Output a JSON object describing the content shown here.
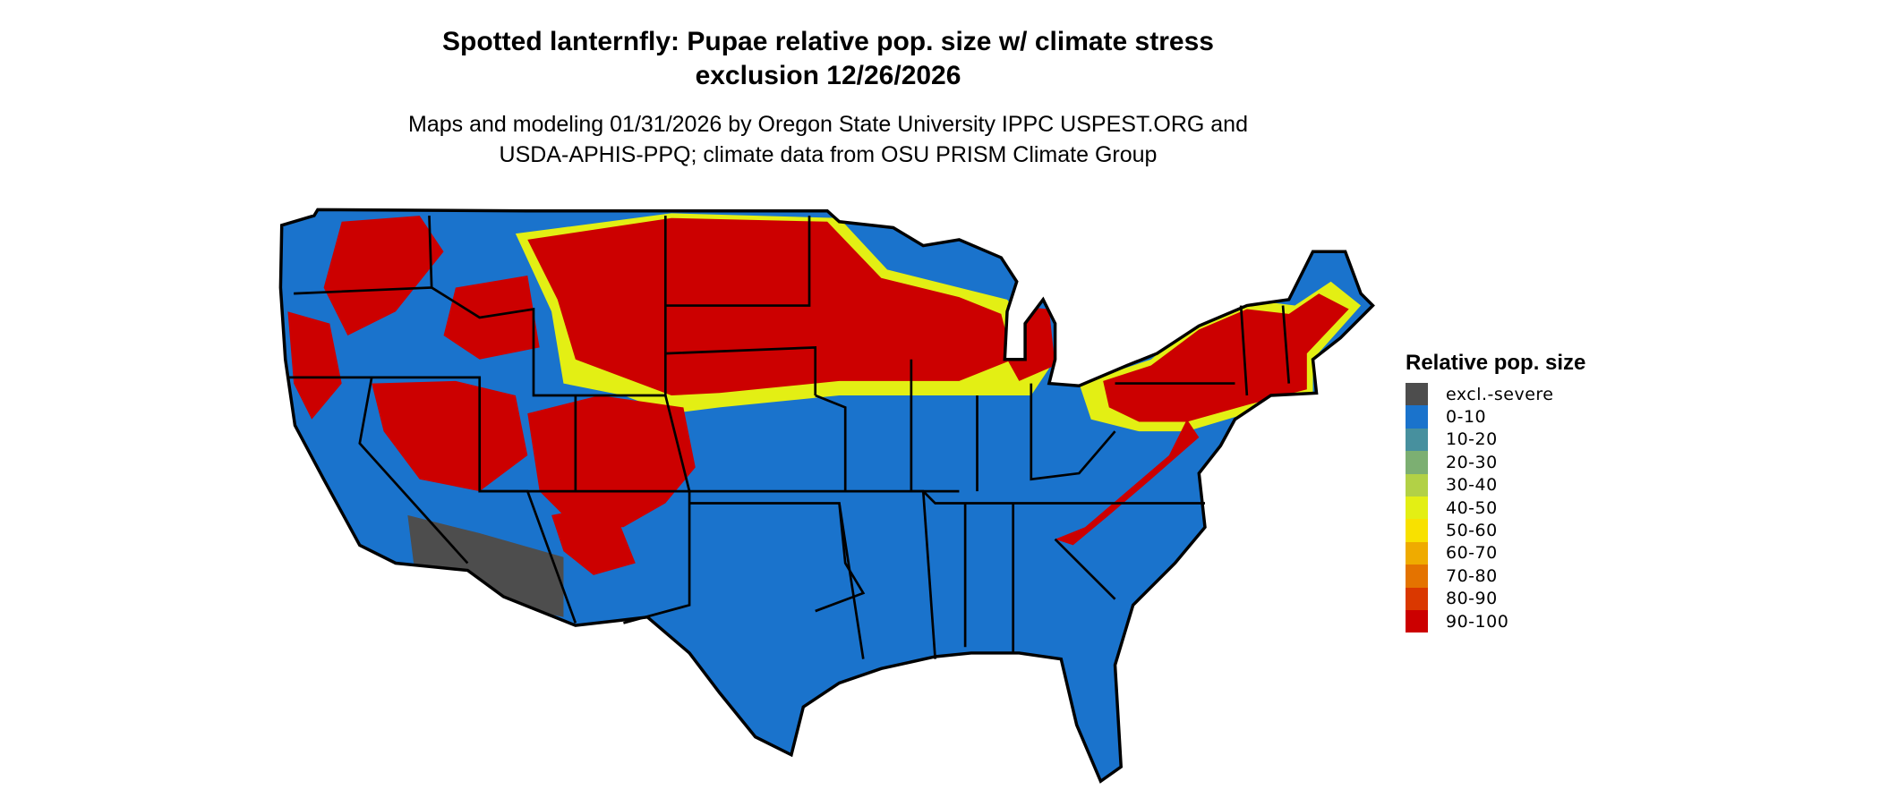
{
  "title_line1": "Spotted lanternfly: Pupae relative pop. size w/ climate stress",
  "title_line2": "exclusion 12/26/2026",
  "subtitle_line1": "Maps and modeling 01/31/2026 by Oregon State University IPPC USPEST.ORG and",
  "subtitle_line2": "USDA-APHIS-PPQ; climate data from OSU PRISM Climate Group",
  "legend": {
    "title": "Relative pop. size",
    "items": [
      {
        "label": "excl.-severe",
        "color": "#4d4d4d"
      },
      {
        "label": "0-10",
        "color": "#1a73cc"
      },
      {
        "label": "10-20",
        "color": "#47909e"
      },
      {
        "label": "20-30",
        "color": "#7caf72"
      },
      {
        "label": "30-40",
        "color": "#b2d146"
      },
      {
        "label": "40-50",
        "color": "#e3ef14"
      },
      {
        "label": "50-60",
        "color": "#f8e100"
      },
      {
        "label": "60-70",
        "color": "#efab00"
      },
      {
        "label": "70-80",
        "color": "#e47300"
      },
      {
        "label": "80-90",
        "color": "#da3800"
      },
      {
        "label": "90-100",
        "color": "#cc0000"
      }
    ]
  },
  "map": {
    "region": "Contiguous United States",
    "base_color": "#1a73cc",
    "high_color": "#cc0000",
    "excluded_color": "#4d4d4d"
  }
}
